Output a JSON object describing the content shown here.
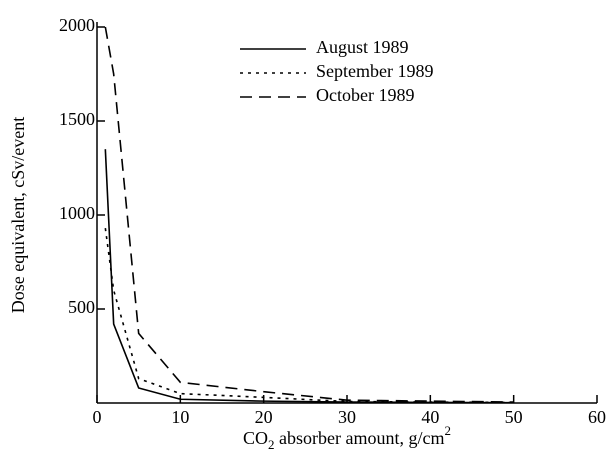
{
  "chart_data": {
    "type": "line",
    "x_label_parts": [
      "CO",
      "2",
      " absorber amount, g/cm",
      "2"
    ],
    "y_label": "Dose equivalent, cSv/event",
    "x": [
      1,
      2,
      5,
      10,
      20,
      30,
      40,
      50
    ],
    "series": [
      {
        "name": "August 1989",
        "color": "#000000",
        "dash": "solid",
        "values": [
          1350,
          420,
          80,
          20,
          10,
          5,
          3,
          2
        ]
      },
      {
        "name": "September 1989",
        "color": "#000000",
        "dash": "dotted",
        "values": [
          930,
          600,
          130,
          50,
          30,
          8,
          5,
          3
        ]
      },
      {
        "name": "October 1989",
        "color": "#000000",
        "dash": "dashed",
        "values": [
          2000,
          1750,
          370,
          110,
          60,
          15,
          10,
          5
        ]
      }
    ],
    "xlim": [
      0,
      60
    ],
    "xticks": [
      0,
      10,
      20,
      30,
      40,
      50,
      60
    ],
    "ylim": [
      0,
      2000
    ],
    "yticks": [
      500,
      1000,
      1500,
      2000
    ],
    "grid": false,
    "legend": "top-center"
  }
}
